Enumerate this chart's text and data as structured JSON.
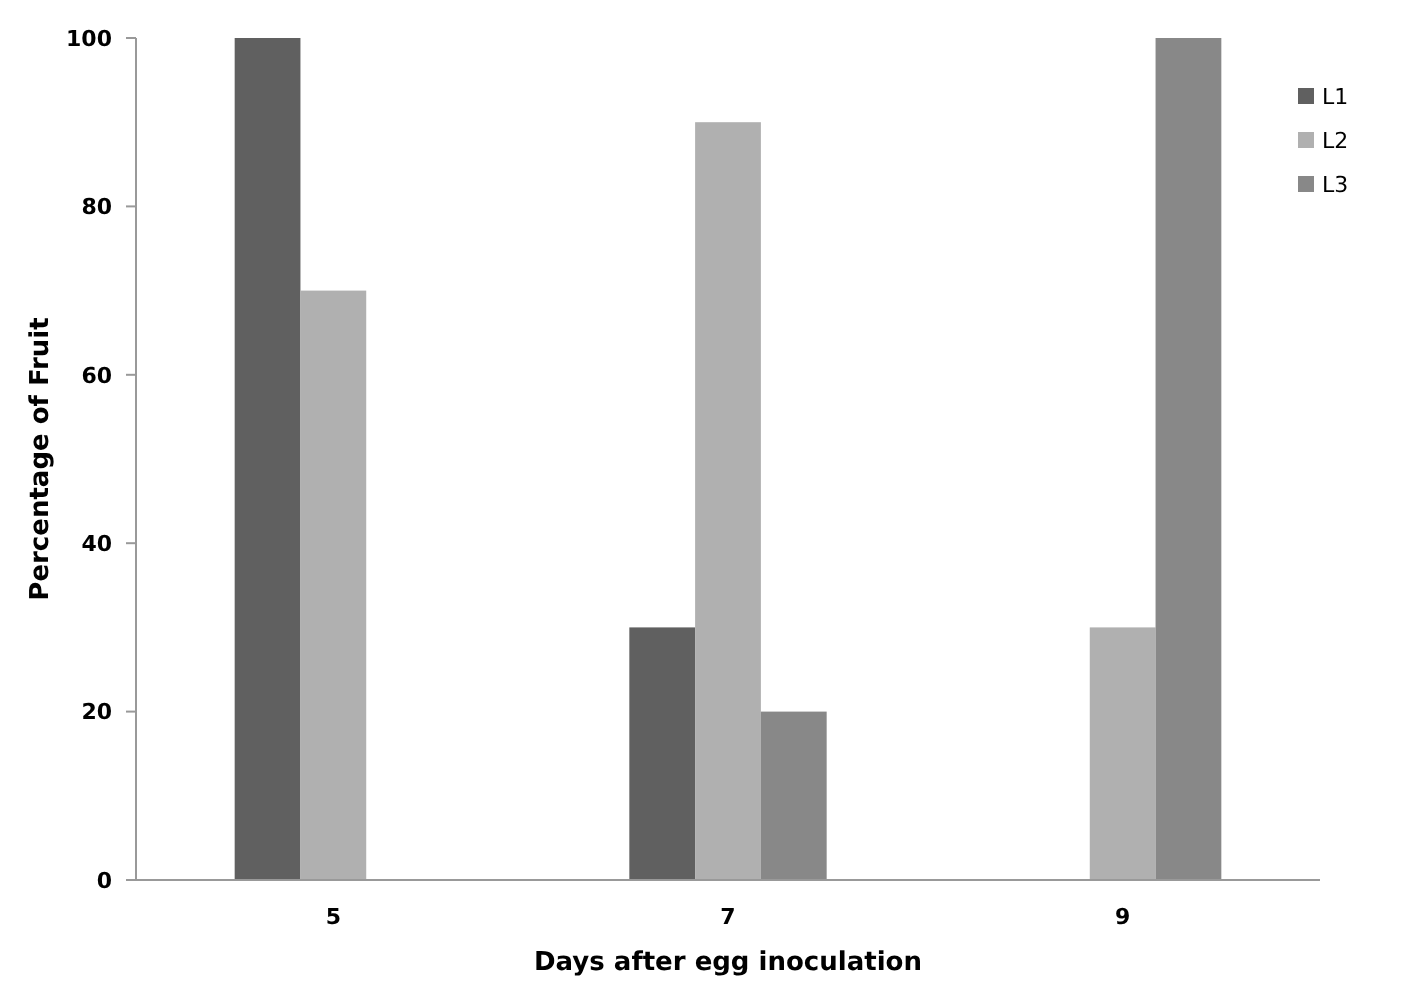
{
  "chart_data": {
    "type": "bar",
    "xlabel": "Days after egg inoculation",
    "ylabel": "Percentage of Fruit",
    "categories": [
      "5",
      "7",
      "9"
    ],
    "series": [
      {
        "name": "L1",
        "color": "#606060",
        "values": [
          100,
          30,
          0
        ]
      },
      {
        "name": "L2",
        "color": "#b0b0b0",
        "values": [
          70,
          90,
          30
        ]
      },
      {
        "name": "L3",
        "color": "#888888",
        "values": [
          0,
          20,
          100
        ]
      }
    ],
    "ylim": [
      0,
      100
    ],
    "yticks": [
      0,
      20,
      40,
      60,
      80,
      100
    ],
    "legend": "right"
  }
}
